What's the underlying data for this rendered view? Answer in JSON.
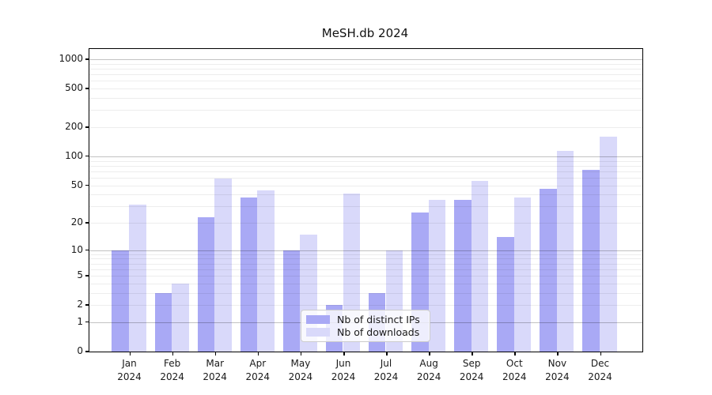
{
  "title": "MeSH.db 2024",
  "chart_data": {
    "type": "bar",
    "title": "MeSH.db 2024",
    "categories": [
      "Jan",
      "Feb",
      "Mar",
      "Apr",
      "May",
      "Jun",
      "Jul",
      "Aug",
      "Sep",
      "Oct",
      "Nov",
      "Dec"
    ],
    "year_label": "2024",
    "series": [
      {
        "name": "Nb of distinct IPs",
        "color": "#a9a9f5",
        "values": [
          10,
          3,
          23,
          37,
          10,
          2,
          3,
          26,
          35,
          14,
          46,
          73
        ]
      },
      {
        "name": "Nb of downloads",
        "color": "#d9d9fa",
        "values": [
          31,
          4,
          59,
          44,
          15,
          41,
          10,
          35,
          56,
          37,
          113,
          160
        ]
      }
    ],
    "xlabel": "",
    "ylabel": "",
    "yscale": "log1p",
    "ylim": [
      0,
      1250
    ],
    "ytick_values": [
      0,
      1,
      2,
      5,
      10,
      20,
      50,
      100,
      200,
      500,
      1000
    ],
    "major_grid_values": [
      1,
      10,
      100,
      1000
    ],
    "minor_grid_values": [
      2,
      3,
      4,
      5,
      6,
      7,
      8,
      9,
      20,
      30,
      40,
      50,
      60,
      70,
      80,
      90,
      200,
      300,
      400,
      500,
      600,
      700,
      800,
      900
    ],
    "grid": "on",
    "legend_position": "lower center",
    "colors": {
      "axis": "#000000",
      "text": "#1a1a1a",
      "minor_grid": "rgba(0,0,0,0.07)",
      "major_grid": "rgba(0,0,0,0.24)",
      "plot_background": "#ffffff"
    }
  }
}
